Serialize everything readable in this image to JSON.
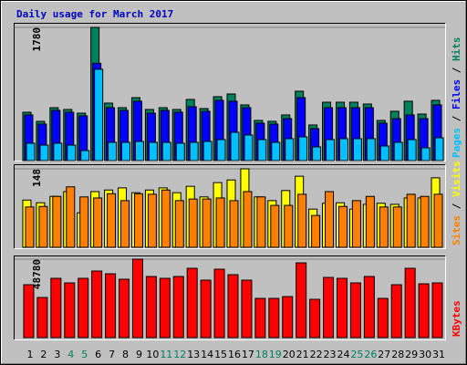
{
  "chart_data": [
    {
      "type": "bar",
      "title": "Daily usage for March 2017",
      "ylim": [
        0,
        1780
      ],
      "yticks": [
        1780
      ],
      "grid": true,
      "series": [
        {
          "name": "Hits",
          "color": "#00805c",
          "values": [
            646,
            524,
            707,
            683,
            634,
            1780,
            768,
            707,
            841,
            683,
            707,
            683,
            817,
            695,
            854,
            890,
            744,
            537,
            525,
            610,
            927,
            476,
            780,
            780,
            780,
            756,
            537,
            659,
            793,
            622,
            805
          ]
        },
        {
          "name": "Files",
          "color": "#0000ff",
          "values": [
            610,
            488,
            671,
            646,
            598,
            1300,
            707,
            671,
            793,
            634,
            671,
            646,
            720,
            659,
            805,
            793,
            707,
            500,
            488,
            561,
            841,
            427,
            707,
            707,
            707,
            707,
            500,
            561,
            610,
            561,
            744
          ]
        },
        {
          "name": "Pages",
          "color": "#00c0ff",
          "values": [
            232,
            207,
            232,
            207,
            134,
            1220,
            244,
            244,
            256,
            244,
            244,
            232,
            244,
            256,
            281,
            378,
            342,
            281,
            244,
            293,
            317,
            183,
            281,
            293,
            293,
            293,
            195,
            244,
            281,
            171,
            305
          ]
        }
      ]
    },
    {
      "type": "bar",
      "ylim": [
        0,
        148
      ],
      "yticks": [
        148
      ],
      "grid": true,
      "series": [
        {
          "name": "Visits",
          "color": "#ffff00",
          "values": [
            89,
            84,
            96,
            105,
            65,
            105,
            108,
            112,
            103,
            108,
            112,
            103,
            115,
            95,
            122,
            127,
            148,
            95,
            88,
            107,
            134,
            72,
            83,
            84,
            72,
            81,
            83,
            81,
            93,
            93,
            131
          ]
        },
        {
          "name": "Sites",
          "color": "#ff8000",
          "values": [
            76,
            77,
            96,
            114,
            95,
            93,
            101,
            88,
            101,
            100,
            108,
            88,
            91,
            91,
            93,
            88,
            105,
            95,
            79,
            79,
            100,
            60,
            105,
            77,
            88,
            96,
            76,
            76,
            100,
            96,
            100
          ]
        }
      ]
    },
    {
      "type": "bar",
      "ylim": [
        0,
        48780
      ],
      "yticks": [
        48780
      ],
      "grid": true,
      "categories": [
        "1",
        "2",
        "3",
        "4",
        "5",
        "6",
        "7",
        "8",
        "9",
        "10",
        "11",
        "12",
        "13",
        "14",
        "15",
        "16",
        "17",
        "18",
        "19",
        "20",
        "21",
        "22",
        "23",
        "24",
        "25",
        "26",
        "27",
        "28",
        "29",
        "30",
        "31"
      ],
      "highlighted_categories": [
        3,
        4,
        10,
        11,
        17,
        18,
        24,
        25
      ],
      "highlight_color": "#00805c",
      "legend_separator": " / ",
      "series": [
        {
          "name": "KBytes",
          "color": "#ff0000",
          "values": [
            32886,
            24950,
            36855,
            34020,
            36855,
            41390,
            39690,
            36290,
            48780,
            37990,
            36855,
            37990,
            43090,
            35720,
            42525,
            39120,
            35720,
            24380,
            24380,
            25515,
            46490,
            23815,
            37420,
            36855,
            34020,
            37990,
            24380,
            32886,
            43090,
            33450,
            34020
          ]
        }
      ]
    }
  ]
}
